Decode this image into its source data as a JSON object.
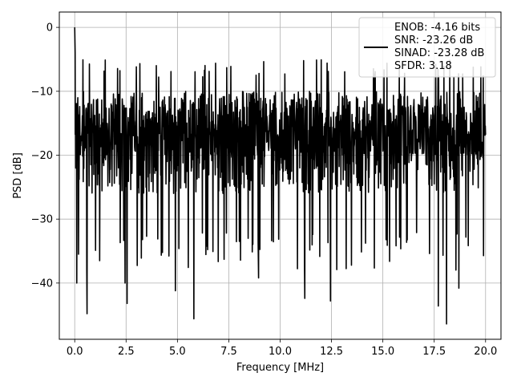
{
  "chart_data": {
    "type": "line",
    "xlabel": "Frequency [MHz]",
    "ylabel": "PSD [dB]",
    "xlim": [
      -0.75,
      20.75
    ],
    "ylim": [
      -48.8,
      2.4
    ],
    "xticks": [
      0.0,
      2.5,
      5.0,
      7.5,
      10.0,
      12.5,
      15.0,
      17.5,
      20.0
    ],
    "xtick_labels": [
      "0.0",
      "2.5",
      "5.0",
      "7.5",
      "10.0",
      "12.5",
      "15.0",
      "17.5",
      "20.0"
    ],
    "yticks": [
      0,
      -10,
      -20,
      -30,
      -40
    ],
    "ytick_labels": [
      "0",
      "−10",
      "−20",
      "−30",
      "−40"
    ],
    "grid": true,
    "legend_position": "top-right",
    "series": [
      {
        "name": "ENOB: -4.16 bits\nSNR: -23.26 dB\nSINAD: -23.28 dB\nSFDR: 3.18",
        "color": "#000000",
        "x_start": 0.0,
        "x_end": 20.0,
        "x": [
          0.0,
          0.02,
          0.05,
          0.1,
          0.15,
          0.6,
          2.45,
          2.55,
          4.9,
          5.8,
          8.95,
          11.2,
          12.45,
          17.7,
          18.1,
          18.7
        ],
        "y": [
          0.0,
          -4.0,
          -22.0,
          -40.0,
          -11.0,
          -44.8,
          -40.0,
          -43.2,
          -41.2,
          -45.6,
          -39.2,
          -42.4,
          -42.8,
          -43.6,
          -46.4,
          -40.8
        ],
        "band_top": -10.0,
        "band_top_peaks": -5.0,
        "band_bottom": -30.0,
        "band_bottom_dips": -38.0
      }
    ],
    "legend_entries": [
      "ENOB: -4.16 bits",
      "SNR: -23.26 dB",
      "SINAD: -23.28 dB",
      "SFDR: 3.18"
    ]
  }
}
